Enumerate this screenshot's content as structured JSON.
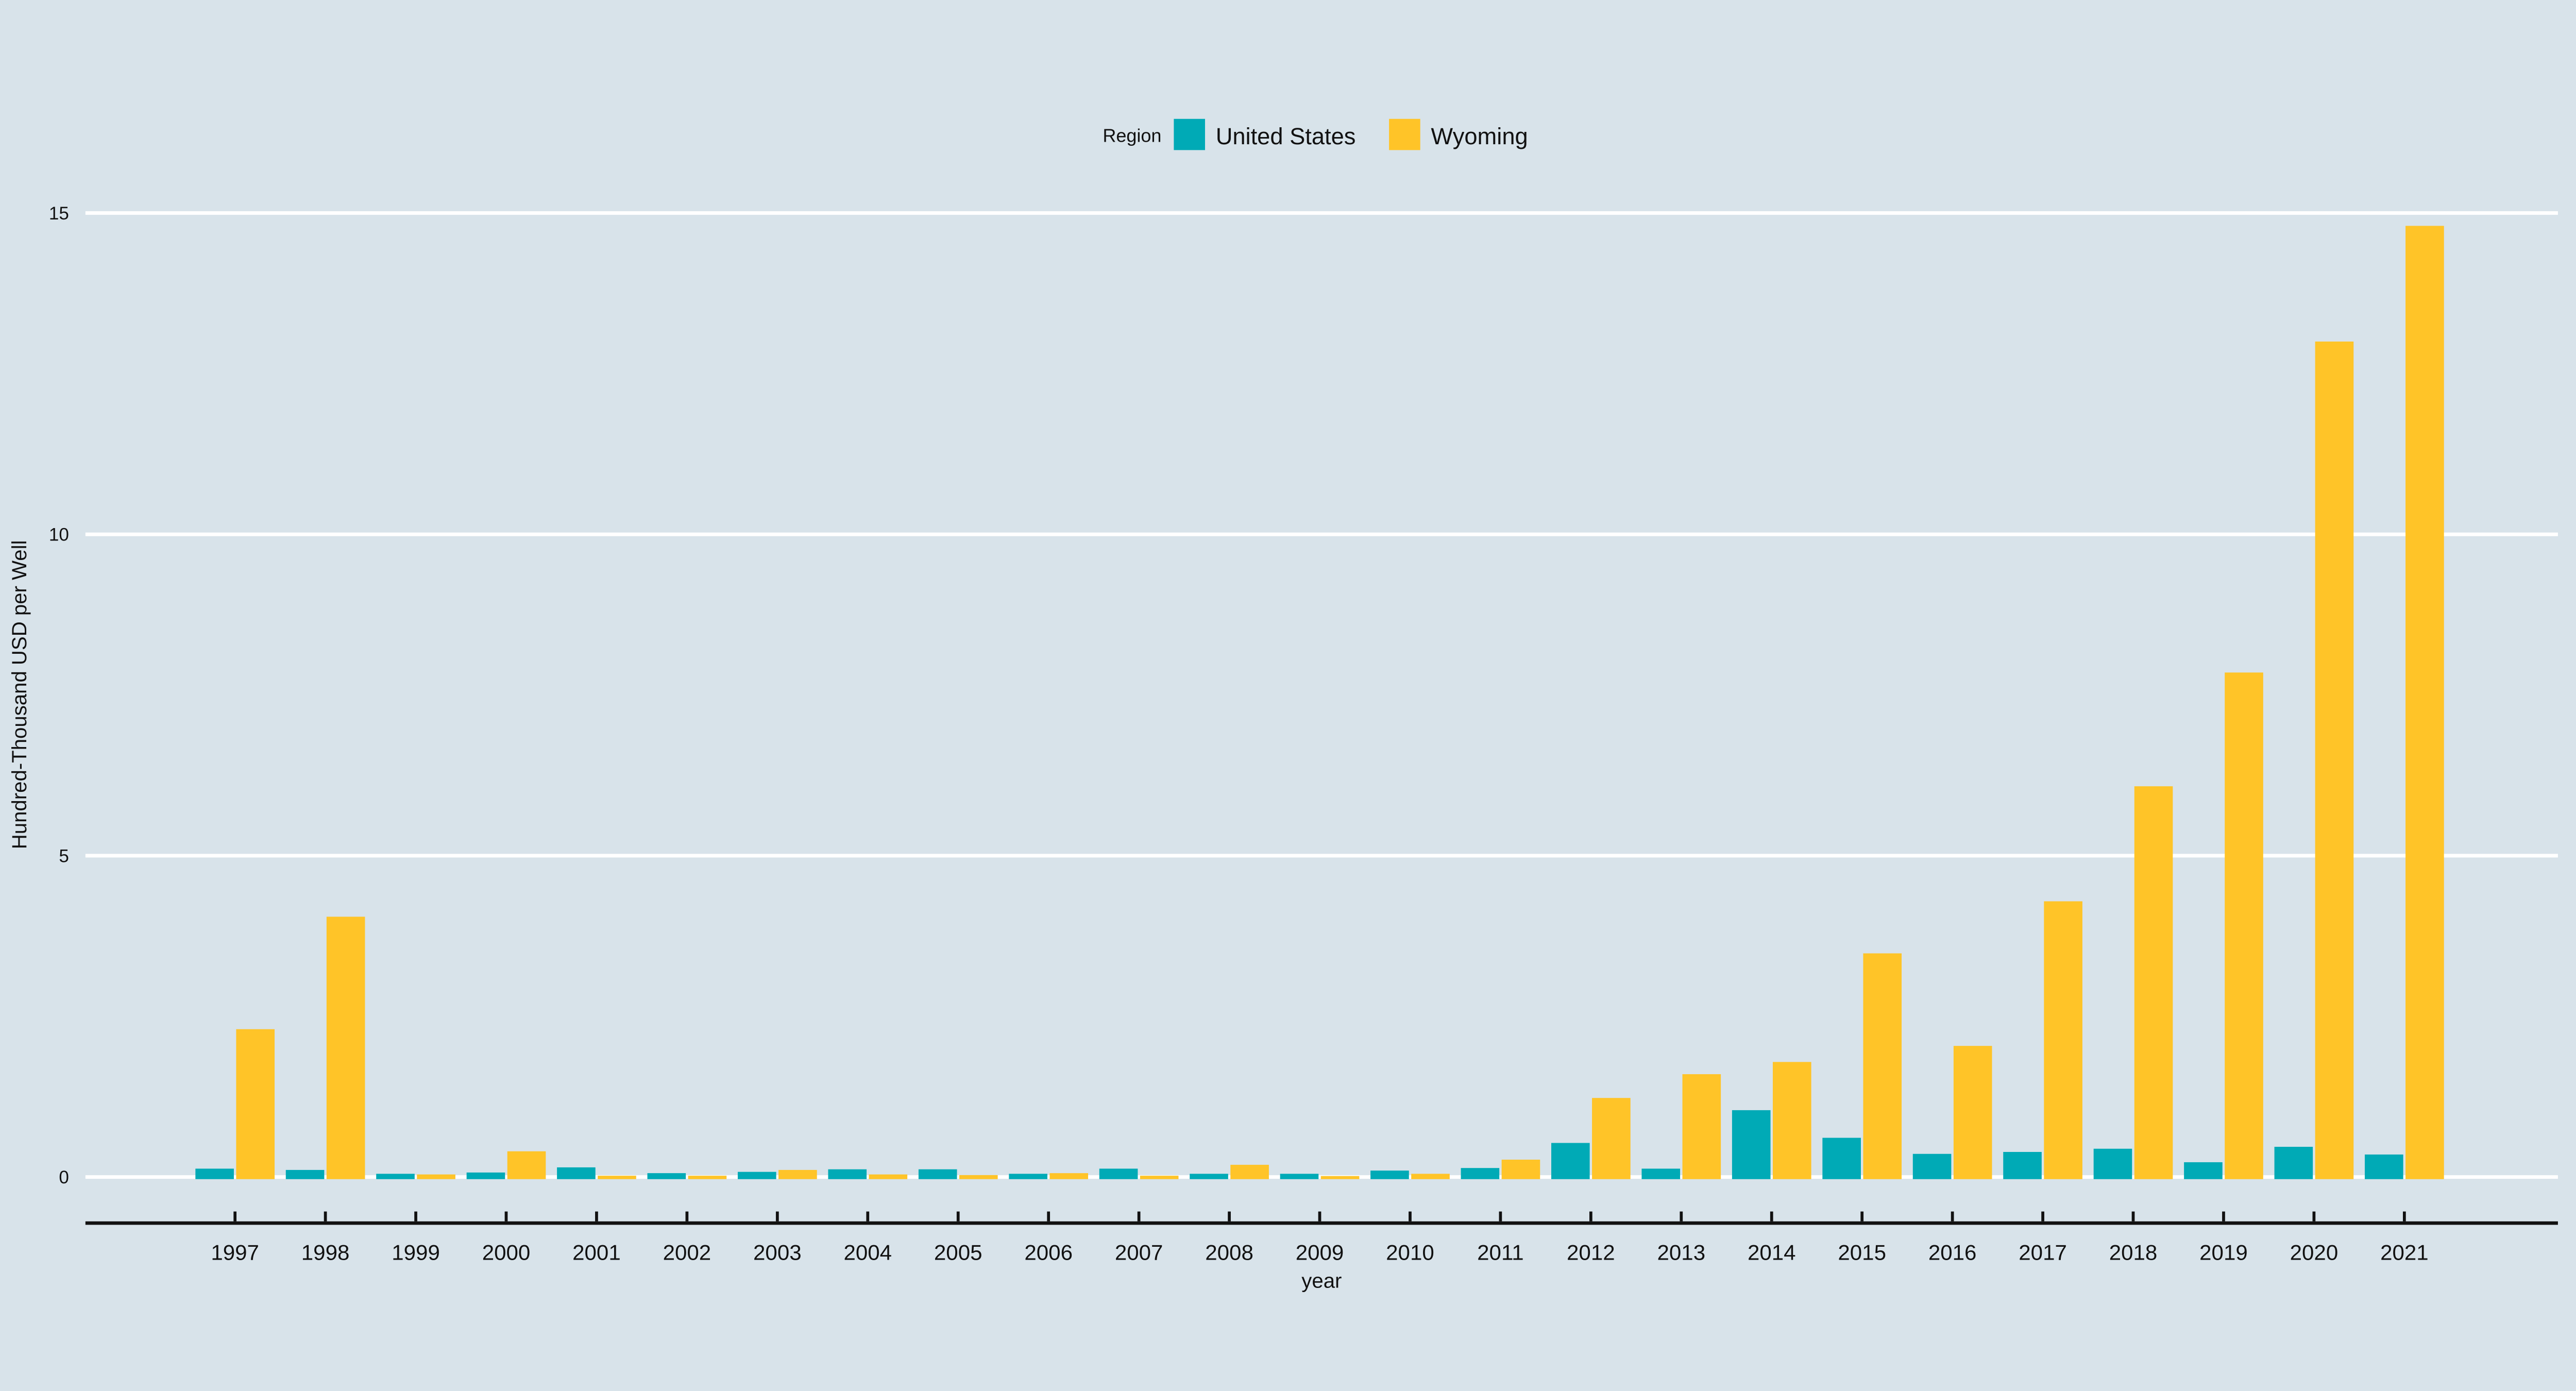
{
  "chart_data": {
    "type": "bar",
    "title": "",
    "xlabel": "year",
    "ylabel": "Hundred-Thousand USD per Well",
    "ylim": [
      0,
      15
    ],
    "yticks": [
      0,
      5,
      10,
      15
    ],
    "ytick_labels": [
      "0",
      "5",
      "10",
      "15"
    ],
    "grid": true,
    "legend_position": "top-center",
    "legend": {
      "title": "Region"
    },
    "categories": [
      "1997",
      "1998",
      "1999",
      "2000",
      "2001",
      "2002",
      "2003",
      "2004",
      "2005",
      "2006",
      "2007",
      "2008",
      "2009",
      "2010",
      "2011",
      "2012",
      "2013",
      "2014",
      "2015",
      "2016",
      "2017",
      "2018",
      "2019",
      "2020",
      "2021"
    ],
    "series": [
      {
        "name": "United States",
        "color": "#00AAB6",
        "values": [
          0.13,
          0.11,
          0.05,
          0.07,
          0.15,
          0.06,
          0.08,
          0.12,
          0.12,
          0.05,
          0.13,
          0.05,
          0.05,
          0.1,
          0.14,
          0.53,
          0.13,
          1.04,
          0.61,
          0.36,
          0.39,
          0.44,
          0.23,
          0.47,
          0.35
        ]
      },
      {
        "name": "Wyoming",
        "color": "#FFC428",
        "values": [
          2.3,
          4.05,
          0.04,
          0.4,
          0.02,
          0.02,
          0.11,
          0.04,
          0.03,
          0.06,
          0.02,
          0.19,
          0.01,
          0.05,
          0.27,
          1.23,
          1.6,
          1.79,
          3.48,
          2.04,
          4.29,
          6.08,
          7.85,
          13.0,
          14.8
        ]
      }
    ],
    "colors": {
      "background": "#D8E3EA",
      "gridline": "#FFFFFF",
      "axis": "#111111",
      "text": "#111111"
    }
  }
}
